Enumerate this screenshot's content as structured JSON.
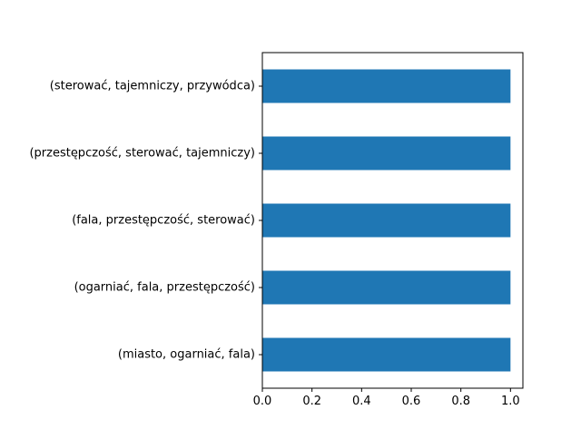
{
  "chart_data": {
    "type": "bar",
    "orientation": "horizontal",
    "categories": [
      "(miasto, ogarniać, fala)",
      "(ogarniać, fala, przestępczość)",
      "(fala, przestępczość, sterować)",
      "(przestępczość, sterować, tajemniczy)",
      "(sterować, tajemniczy, przywódca)"
    ],
    "values": [
      1.0,
      1.0,
      1.0,
      1.0,
      1.0
    ],
    "title": "",
    "xlabel": "",
    "ylabel": "",
    "xlim": [
      0,
      1.05
    ],
    "xticks": [
      "0.0",
      "0.2",
      "0.4",
      "0.6",
      "0.8",
      "1.0"
    ],
    "grid": false,
    "legend": "none",
    "bar_color": "#1f77b4"
  }
}
